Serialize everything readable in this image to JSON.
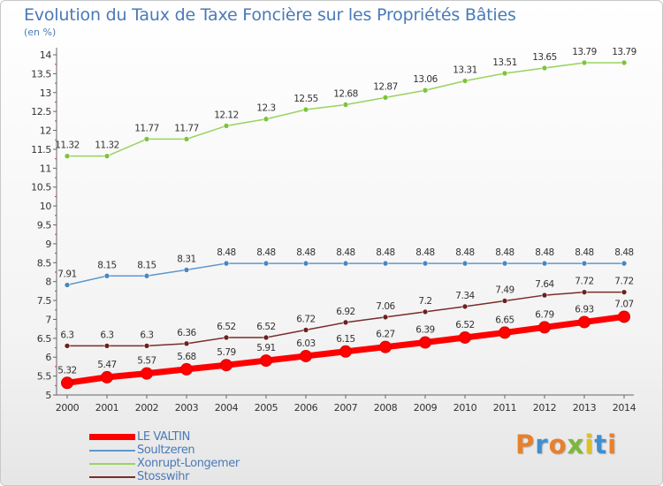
{
  "title": "Evolution du Taux de Taxe Foncière sur les Propriétés Bâties",
  "subtitle": "(en %)",
  "logo": {
    "letters": [
      "P",
      "r",
      "o",
      "x",
      "i",
      "t",
      "i"
    ],
    "colors": [
      "#e8802c",
      "#3f8fd0",
      "#e8802c",
      "#7cb83a",
      "#e0c020",
      "#3f8fd0",
      "#e8802c"
    ]
  },
  "chart_data": {
    "type": "line",
    "x": [
      2000,
      2001,
      2002,
      2003,
      2004,
      2005,
      2006,
      2007,
      2008,
      2009,
      2010,
      2011,
      2012,
      2013,
      2014
    ],
    "ylim": [
      5,
      14
    ],
    "yticks": [
      "5",
      "5.5",
      "6",
      "6.5",
      "7",
      "7.5",
      "8",
      "8.5",
      "9",
      "9.5",
      "10",
      "10.5",
      "11",
      "11.5",
      "12",
      "12.5",
      "13",
      "13.5",
      "14"
    ],
    "grid": false,
    "legend_position": "bottom-left",
    "series": [
      {
        "name": "Xonrupt-Longemer",
        "color": "#99d35f",
        "marker_color": "#7cc43c",
        "values": [
          11.32,
          11.32,
          11.77,
          11.77,
          12.12,
          12.3,
          12.55,
          12.68,
          12.87,
          13.06,
          13.31,
          13.51,
          13.65,
          13.79,
          13.79
        ],
        "labels": [
          "11.32",
          "11.32",
          "11.77",
          "11.77",
          "12.12",
          "12.3",
          "12.55",
          "12.68",
          "12.87",
          "13.06",
          "13.31",
          "13.51",
          "13.65",
          "13.79",
          "13.79"
        ]
      },
      {
        "name": "Soultzeren",
        "color": "#5e98cc",
        "marker_color": "#4a86c0",
        "values": [
          7.91,
          8.15,
          8.15,
          8.31,
          8.48,
          8.48,
          8.48,
          8.48,
          8.48,
          8.48,
          8.48,
          8.48,
          8.48,
          8.48,
          8.48
        ],
        "labels": [
          "7.91",
          "8.15",
          "8.15",
          "8.31",
          "8.48",
          "8.48",
          "8.48",
          "8.48",
          "8.48",
          "8.48",
          "8.48",
          "8.48",
          "8.48",
          "8.48",
          "8.48"
        ]
      },
      {
        "name": "Stosswihr",
        "color": "#7a2c2c",
        "marker_color": "#6a2020",
        "values": [
          6.3,
          6.3,
          6.3,
          6.36,
          6.52,
          6.52,
          6.72,
          6.92,
          7.06,
          7.2,
          7.34,
          7.49,
          7.64,
          7.72,
          7.72
        ],
        "labels": [
          "6.3",
          "6.3",
          "6.3",
          "6.36",
          "6.52",
          "6.52",
          "6.72",
          "6.92",
          "7.06",
          "7.2",
          "7.34",
          "7.49",
          "7.64",
          "7.72",
          "7.72"
        ]
      },
      {
        "name": "LE VALTIN",
        "color": "#ff0000",
        "marker_color": "#ff0000",
        "values": [
          5.32,
          5.47,
          5.57,
          5.68,
          5.79,
          5.91,
          6.03,
          6.15,
          6.27,
          6.39,
          6.52,
          6.65,
          6.79,
          6.93,
          7.07
        ],
        "labels": [
          "5.32",
          "5.47",
          "5.57",
          "5.68",
          "5.79",
          "5.91",
          "6.03",
          "6.15",
          "6.27",
          "6.39",
          "6.52",
          "6.65",
          "6.79",
          "6.93",
          "7.07"
        ]
      }
    ],
    "legend_order": [
      "LE VALTIN",
      "Soultzeren",
      "Xonrupt-Longemer",
      "Stosswihr"
    ]
  }
}
